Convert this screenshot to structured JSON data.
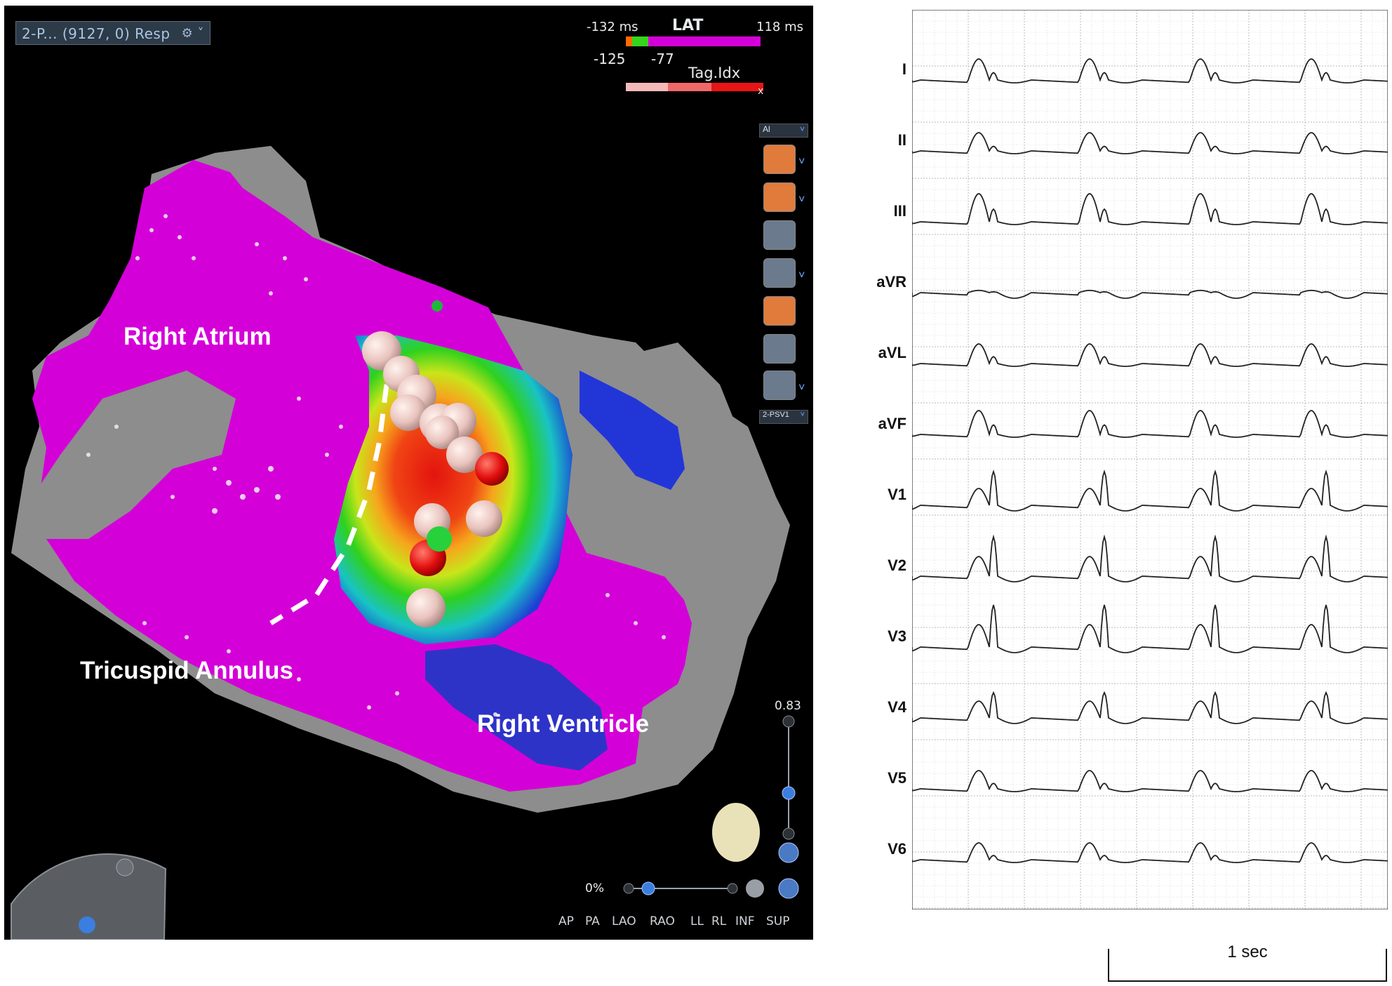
{
  "map_window": {
    "mode_label": "2-P... (9127, 0) Resp",
    "lat_bar": {
      "min_label": "-132 ms",
      "title": "LAT",
      "max_label": "118 ms",
      "marker_low": "-125",
      "marker_high": "-77"
    },
    "tag_idx_label": "Tag.Idx",
    "close_glyph": "x",
    "toolbar": {
      "dropdown_value": "Al",
      "bottom_dropdown_value": "2-PSV1",
      "icons": [
        "points-icon",
        "lat-points-icon",
        "pair-points-icon",
        "grid-icon",
        "color-grid-icon",
        "dot-grid-icon",
        "ruler-icon"
      ]
    },
    "anatomy_labels": {
      "right_atrium": "Right Atrium",
      "tricuspid_annulus": "Tricuspid Annulus",
      "right_ventricle": "Right Ventricle"
    },
    "zoom_value": "0.83",
    "opacity_value": "0%",
    "view_buttons": [
      "AP",
      "PA",
      "LAO",
      "RAO",
      "LL",
      "RL",
      "INF",
      "SUP"
    ],
    "colors": {
      "lat_purple": "#d400d8",
      "tissue_gray": "#8d8d8d",
      "early_red": "#e5191a",
      "accent_blue": "#4a7fd4"
    }
  },
  "ecg": {
    "leads": [
      "I",
      "II",
      "III",
      "aVR",
      "aVL",
      "aVF",
      "V1",
      "V2",
      "V3",
      "V4",
      "V5",
      "V6"
    ],
    "scale_label": "1 sec"
  }
}
